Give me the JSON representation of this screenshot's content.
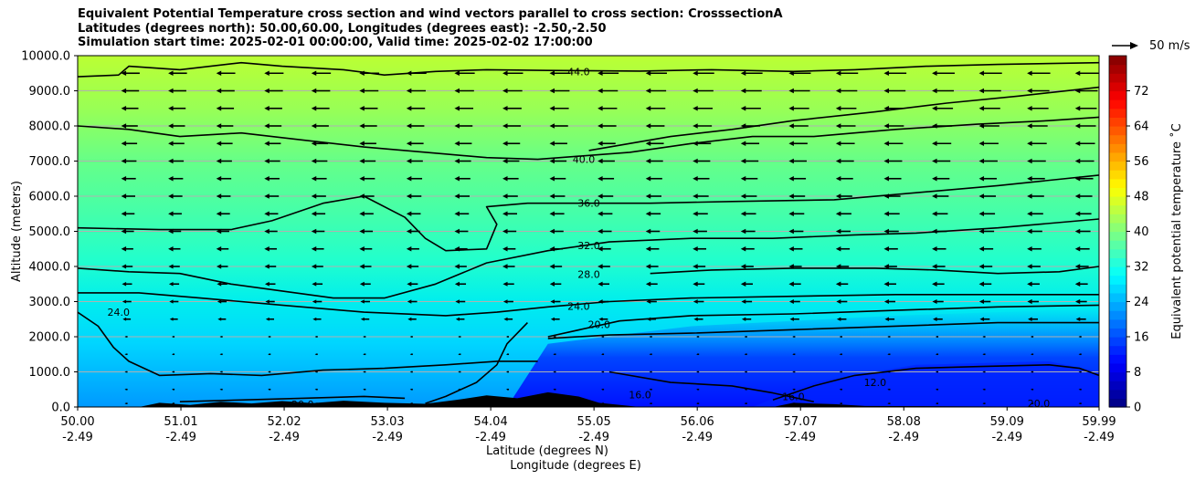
{
  "title": {
    "line1": "Equivalent Potential Temperature cross section and wind vectors parallel to cross section: CrosssectionA",
    "line2": "Latitudes (degrees north): 50.00,60.00, Longitudes (degrees east): -2.50,-2.50",
    "line3": "Simulation start time: 2025-02-01 00:00:00, Valid time: 2025-02-02 17:00:00"
  },
  "quiver_reference_label": "50 m/s",
  "colorbar_label": "Equivalent potential temperature ˚C",
  "chart_data": {
    "type": "contour_cross_section",
    "y_axis_label": "Altitude (meters)",
    "x_axis_label_line1": "Latitude (degrees N)",
    "x_axis_label_line2": "Longitude (degrees E)",
    "y_ticks": [
      "0.0",
      "1000.0",
      "2000.0",
      "3000.0",
      "4000.0",
      "5000.0",
      "6000.0",
      "7000.0",
      "8000.0",
      "9000.0",
      "10000.0"
    ],
    "ylim": [
      0,
      10000
    ],
    "xlim": [
      50.0,
      59.99
    ],
    "x_ticks": [
      {
        "lat": "50.00",
        "lon": "-2.49",
        "value": 50.0
      },
      {
        "lat": "51.01",
        "lon": "-2.49",
        "value": 51.01
      },
      {
        "lat": "52.02",
        "lon": "-2.49",
        "value": 52.02
      },
      {
        "lat": "53.03",
        "lon": "-2.49",
        "value": 53.03
      },
      {
        "lat": "54.04",
        "lon": "-2.49",
        "value": 54.04
      },
      {
        "lat": "55.05",
        "lon": "-2.49",
        "value": 55.05
      },
      {
        "lat": "56.06",
        "lon": "-2.49",
        "value": 56.06
      },
      {
        "lat": "57.07",
        "lon": "-2.49",
        "value": 57.07
      },
      {
        "lat": "58.08",
        "lon": "-2.49",
        "value": 58.08
      },
      {
        "lat": "59.09",
        "lon": "-2.49",
        "value": 59.09
      },
      {
        "lat": "59.99",
        "lon": "-2.49",
        "value": 59.99
      }
    ],
    "colorbar_range": [
      0,
      80
    ],
    "colorbar_ticks": [
      "0",
      "8",
      "16",
      "24",
      "32",
      "40",
      "48",
      "56",
      "64",
      "72"
    ],
    "grid": "horizontal",
    "contours": [
      {
        "level": "44.0",
        "label_x": 54.9,
        "label_y": 9550,
        "points": [
          [
            50.0,
            9400
          ],
          [
            50.4,
            9450
          ],
          [
            50.5,
            9700
          ],
          [
            51.0,
            9600
          ],
          [
            51.6,
            9800
          ],
          [
            52.0,
            9700
          ],
          [
            52.6,
            9600
          ],
          [
            53.0,
            9450
          ],
          [
            53.5,
            9550
          ],
          [
            54.0,
            9600
          ],
          [
            54.6,
            9580
          ],
          [
            55.5,
            9560
          ],
          [
            56.2,
            9600
          ],
          [
            57.0,
            9550
          ],
          [
            57.6,
            9600
          ],
          [
            58.3,
            9700
          ],
          [
            59.0,
            9750
          ],
          [
            59.99,
            9800
          ]
        ]
      },
      {
        "level": "40.0",
        "label_x": 54.95,
        "label_y": 7050,
        "points": [
          [
            50.0,
            8000
          ],
          [
            50.5,
            7900
          ],
          [
            51.0,
            7700
          ],
          [
            51.6,
            7800
          ],
          [
            52.2,
            7600
          ],
          [
            52.8,
            7400
          ],
          [
            53.2,
            7300
          ],
          [
            53.6,
            7200
          ],
          [
            54.0,
            7100
          ],
          [
            54.5,
            7050
          ],
          [
            55.4,
            7250
          ],
          [
            56.0,
            7500
          ],
          [
            56.6,
            7700
          ],
          [
            57.2,
            7700
          ],
          [
            58.0,
            7900
          ],
          [
            58.8,
            8050
          ],
          [
            59.5,
            8150
          ],
          [
            59.99,
            8250
          ]
        ]
      },
      {
        "level": "",
        "label_x": null,
        "label_y": null,
        "points": [
          [
            55.0,
            7300
          ],
          [
            55.8,
            7700
          ],
          [
            56.4,
            7900
          ],
          [
            57.0,
            8150
          ],
          [
            57.8,
            8400
          ],
          [
            58.5,
            8650
          ],
          [
            59.2,
            8850
          ],
          [
            59.99,
            9100
          ]
        ]
      },
      {
        "level": "36.0",
        "label_x": 55.0,
        "label_y": 5800,
        "points": [
          [
            50.0,
            5100
          ],
          [
            50.8,
            5050
          ],
          [
            51.5,
            5050
          ],
          [
            51.9,
            5300
          ],
          [
            52.4,
            5800
          ],
          [
            52.8,
            6000
          ],
          [
            53.2,
            5400
          ],
          [
            53.4,
            4800
          ],
          [
            53.6,
            4450
          ],
          [
            54.0,
            4500
          ],
          [
            54.1,
            5200
          ],
          [
            54.0,
            5700
          ],
          [
            54.4,
            5800
          ],
          [
            55.0,
            5800
          ],
          [
            55.6,
            5800
          ],
          [
            56.4,
            5850
          ],
          [
            57.4,
            5900
          ],
          [
            58.2,
            6100
          ],
          [
            59.0,
            6300
          ],
          [
            59.99,
            6600
          ]
        ]
      },
      {
        "level": "32.0",
        "label_x": 55.0,
        "label_y": 4600,
        "points": [
          [
            50.0,
            3950
          ],
          [
            50.5,
            3850
          ],
          [
            51.0,
            3800
          ],
          [
            51.5,
            3500
          ],
          [
            52.0,
            3300
          ],
          [
            52.5,
            3100
          ],
          [
            53.0,
            3100
          ],
          [
            53.5,
            3500
          ],
          [
            54.0,
            4100
          ],
          [
            54.6,
            4450
          ],
          [
            55.2,
            4700
          ],
          [
            56.0,
            4800
          ],
          [
            56.8,
            4800
          ],
          [
            57.6,
            4900
          ],
          [
            58.2,
            4950
          ],
          [
            59.0,
            5100
          ],
          [
            59.99,
            5350
          ]
        ]
      },
      {
        "level": "28.0",
        "label_x": 55.0,
        "label_y": 3780,
        "points": [
          [
            55.6,
            3800
          ],
          [
            56.2,
            3900
          ],
          [
            57.0,
            3950
          ],
          [
            57.8,
            3950
          ],
          [
            58.4,
            3900
          ],
          [
            59.0,
            3800
          ],
          [
            59.6,
            3850
          ],
          [
            59.99,
            4000
          ]
        ]
      },
      {
        "level": "24.0",
        "label_x": 54.9,
        "label_y": 2870,
        "points": [
          [
            50.0,
            3250
          ],
          [
            50.6,
            3250
          ],
          [
            51.2,
            3100
          ],
          [
            52.0,
            2900
          ],
          [
            52.8,
            2700
          ],
          [
            53.6,
            2600
          ],
          [
            54.1,
            2700
          ],
          [
            54.6,
            2850
          ],
          [
            55.2,
            3000
          ],
          [
            56.0,
            3100
          ],
          [
            57.0,
            3150
          ],
          [
            58.0,
            3200
          ],
          [
            59.0,
            3200
          ],
          [
            59.99,
            3200
          ]
        ]
      },
      {
        "level": "20.0",
        "label_x": 55.1,
        "label_y": 2350,
        "points": [
          [
            54.6,
            2000
          ],
          [
            55.3,
            2450
          ],
          [
            56.0,
            2600
          ],
          [
            57.0,
            2650
          ],
          [
            58.0,
            2750
          ],
          [
            59.0,
            2850
          ],
          [
            59.99,
            2900
          ]
        ]
      },
      {
        "level": "20.0",
        "label_x": 59.4,
        "label_y": 100,
        "points": [
          [
            54.6,
            1950
          ],
          [
            55.2,
            2050
          ],
          [
            56.0,
            2100
          ],
          [
            57.0,
            2200
          ],
          [
            58.0,
            2300
          ],
          [
            59.0,
            2400
          ],
          [
            59.99,
            2400
          ]
        ]
      },
      {
        "level": "24.0",
        "label_x": 50.4,
        "label_y": 2700,
        "points": [
          [
            50.0,
            2700
          ],
          [
            50.2,
            2300
          ],
          [
            50.35,
            1700
          ],
          [
            50.5,
            1300
          ],
          [
            50.8,
            900
          ],
          [
            51.3,
            950
          ],
          [
            51.8,
            900
          ],
          [
            52.4,
            1050
          ],
          [
            53.0,
            1100
          ],
          [
            53.6,
            1200
          ],
          [
            54.1,
            1300
          ],
          [
            54.5,
            1300
          ]
        ]
      },
      {
        "level": "12.0",
        "label_x": 57.8,
        "label_y": 700,
        "points": [
          [
            56.8,
            200
          ],
          [
            57.2,
            600
          ],
          [
            57.6,
            900
          ],
          [
            58.2,
            1100
          ],
          [
            58.8,
            1150
          ],
          [
            59.5,
            1200
          ],
          [
            59.8,
            1100
          ],
          [
            59.99,
            900
          ]
        ]
      },
      {
        "level": "16.0",
        "label_x": 55.5,
        "label_y": 350,
        "points": [
          [
            54.4,
            2400
          ],
          [
            54.2,
            1800
          ],
          [
            54.1,
            1200
          ],
          [
            53.9,
            700
          ],
          [
            53.6,
            300
          ],
          [
            53.4,
            100
          ]
        ]
      },
      {
        "level": "16.0",
        "label_x": 57.0,
        "label_y": 300,
        "points": [
          [
            55.2,
            1000
          ],
          [
            55.8,
            700
          ],
          [
            56.4,
            600
          ],
          [
            56.8,
            400
          ],
          [
            57.2,
            150
          ]
        ]
      },
      {
        "level": "20.0",
        "label_x": 52.2,
        "label_y": 80,
        "points": [
          [
            51.0,
            150
          ],
          [
            51.6,
            200
          ],
          [
            52.2,
            250
          ],
          [
            52.8,
            300
          ],
          [
            53.2,
            250
          ]
        ]
      }
    ],
    "terrain_profile": [
      [
        50.0,
        0
      ],
      [
        50.6,
        0
      ],
      [
        50.8,
        120
      ],
      [
        51.1,
        60
      ],
      [
        51.4,
        150
      ],
      [
        51.7,
        100
      ],
      [
        52.0,
        170
      ],
      [
        52.3,
        110
      ],
      [
        52.6,
        180
      ],
      [
        53.0,
        120
      ],
      [
        53.4,
        90
      ],
      [
        53.7,
        200
      ],
      [
        54.0,
        330
      ],
      [
        54.3,
        250
      ],
      [
        54.6,
        420
      ],
      [
        54.9,
        300
      ],
      [
        55.1,
        120
      ],
      [
        55.5,
        0
      ],
      [
        56.8,
        0
      ],
      [
        57.0,
        120
      ],
      [
        57.4,
        80
      ],
      [
        57.7,
        30
      ],
      [
        59.99,
        0
      ]
    ]
  },
  "wind_field": {
    "reference_speed": 50,
    "columns": [
      50.47,
      50.93,
      51.4,
      51.87,
      52.33,
      52.8,
      53.26,
      53.73,
      54.2,
      54.66,
      55.13,
      55.6,
      56.06,
      56.53,
      57.0,
      57.46,
      57.93,
      58.4,
      58.86,
      59.33,
      59.8
    ],
    "levels": [
      100,
      500,
      1000,
      1500,
      2000,
      2500,
      3000,
      3500,
      4000,
      4500,
      5000,
      5500,
      6000,
      6500,
      7000,
      7500,
      8000,
      8500,
      9000,
      9500
    ]
  }
}
